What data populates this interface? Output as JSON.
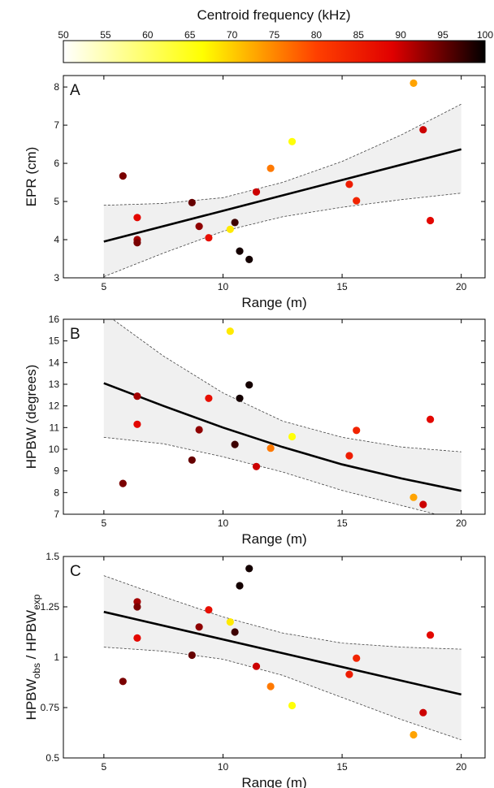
{
  "colorbar": {
    "title": "Centroid frequency (kHz)",
    "ticks": [
      "50",
      "55",
      "60",
      "65",
      "70",
      "75",
      "80",
      "85",
      "90",
      "95",
      "100"
    ],
    "range": [
      50,
      100
    ]
  },
  "chart_data": [
    {
      "type": "scatter",
      "panel": "A",
      "xlabel": "Range (m)",
      "ylabel": "EPR (cm)",
      "xlim": [
        3.3,
        21.0
      ],
      "ylim": [
        3,
        8.3
      ],
      "xticks": [
        5,
        10,
        15,
        20
      ],
      "yticks": [
        3,
        4,
        5,
        6,
        7,
        8
      ],
      "points": [
        {
          "x": 5.8,
          "y": 5.67,
          "f": 94
        },
        {
          "x": 6.4,
          "y": 4.58,
          "f": 88
        },
        {
          "x": 6.4,
          "y": 4.0,
          "f": 92
        },
        {
          "x": 6.4,
          "y": 3.92,
          "f": 94
        },
        {
          "x": 8.7,
          "y": 4.97,
          "f": 95
        },
        {
          "x": 9.0,
          "y": 4.35,
          "f": 93
        },
        {
          "x": 9.4,
          "y": 4.05,
          "f": 87
        },
        {
          "x": 10.3,
          "y": 4.27,
          "f": 68
        },
        {
          "x": 10.5,
          "y": 4.45,
          "f": 97
        },
        {
          "x": 10.7,
          "y": 3.7,
          "f": 99
        },
        {
          "x": 11.1,
          "y": 3.48,
          "f": 99
        },
        {
          "x": 11.4,
          "y": 5.25,
          "f": 90
        },
        {
          "x": 12.0,
          "y": 5.87,
          "f": 76
        },
        {
          "x": 12.9,
          "y": 6.57,
          "f": 66
        },
        {
          "x": 15.3,
          "y": 5.45,
          "f": 85
        },
        {
          "x": 15.6,
          "y": 5.02,
          "f": 84
        },
        {
          "x": 18.0,
          "y": 8.1,
          "f": 73
        },
        {
          "x": 18.4,
          "y": 6.88,
          "f": 90
        },
        {
          "x": 18.7,
          "y": 4.5,
          "f": 88
        }
      ],
      "fit": {
        "x": [
          5,
          20
        ],
        "y": [
          3.95,
          6.37
        ]
      },
      "ci_upper": {
        "x": [
          5,
          7.5,
          10,
          12.5,
          15,
          17.5,
          20
        ],
        "y": [
          4.9,
          4.95,
          5.1,
          5.5,
          6.05,
          6.75,
          7.55
        ]
      },
      "ci_lower": {
        "x": [
          5,
          7.5,
          10,
          12.5,
          15,
          17.5,
          20
        ],
        "y": [
          3.03,
          3.65,
          4.22,
          4.6,
          4.85,
          5.05,
          5.22
        ]
      }
    },
    {
      "type": "scatter",
      "panel": "B",
      "xlabel": "Range (m)",
      "ylabel": "HPBW (degrees)",
      "xlim": [
        3.3,
        21.0
      ],
      "ylim": [
        7,
        16
      ],
      "xticks": [
        5,
        10,
        15,
        20
      ],
      "yticks": [
        7,
        8,
        9,
        10,
        11,
        12,
        13,
        14,
        15,
        16
      ],
      "points": [
        {
          "x": 5.8,
          "y": 8.42,
          "f": 94
        },
        {
          "x": 6.4,
          "y": 12.45,
          "f": 92
        },
        {
          "x": 6.4,
          "y": 11.15,
          "f": 88
        },
        {
          "x": 8.7,
          "y": 9.5,
          "f": 95
        },
        {
          "x": 9.0,
          "y": 10.9,
          "f": 93
        },
        {
          "x": 9.4,
          "y": 12.35,
          "f": 87
        },
        {
          "x": 10.3,
          "y": 15.45,
          "f": 68
        },
        {
          "x": 10.5,
          "y": 10.22,
          "f": 97
        },
        {
          "x": 10.7,
          "y": 12.35,
          "f": 99
        },
        {
          "x": 11.1,
          "y": 12.97,
          "f": 99
        },
        {
          "x": 11.4,
          "y": 9.2,
          "f": 90
        },
        {
          "x": 12.0,
          "y": 10.05,
          "f": 76
        },
        {
          "x": 12.9,
          "y": 10.58,
          "f": 66
        },
        {
          "x": 15.3,
          "y": 9.7,
          "f": 85
        },
        {
          "x": 15.6,
          "y": 10.87,
          "f": 84
        },
        {
          "x": 18.0,
          "y": 7.78,
          "f": 73
        },
        {
          "x": 18.4,
          "y": 7.45,
          "f": 90
        },
        {
          "x": 18.7,
          "y": 11.38,
          "f": 88
        }
      ],
      "fit": {
        "x": [
          5,
          7.5,
          10,
          12.5,
          15,
          17.5,
          20
        ],
        "y": [
          13.05,
          12.0,
          11.0,
          10.1,
          9.3,
          8.65,
          8.08
        ]
      },
      "ci_upper": {
        "x": [
          5,
          7.5,
          10,
          12.5,
          15,
          17.5,
          20
        ],
        "y": [
          16.3,
          14.3,
          12.6,
          11.3,
          10.55,
          10.1,
          9.88
        ]
      },
      "ci_lower": {
        "x": [
          5,
          7.5,
          10,
          12.5,
          15,
          17.5,
          20
        ],
        "y": [
          10.55,
          10.25,
          9.65,
          8.95,
          8.1,
          7.4,
          6.7
        ]
      }
    },
    {
      "type": "scatter",
      "panel": "C",
      "xlabel": "Range (m)",
      "ylabel_main": "HPBW",
      "ylabel_sub1": "obs",
      "ylabel_mid": " / HPBW",
      "ylabel_sub2": "exp",
      "xlim": [
        3.3,
        21.0
      ],
      "ylim": [
        0.5,
        1.5
      ],
      "xticks": [
        5,
        10,
        15,
        20
      ],
      "yticks": [
        0.5,
        0.75,
        1,
        1.25,
        1.5
      ],
      "ytick_labels": [
        "0.5",
        "0.75",
        "1",
        "1.25",
        "1.5"
      ],
      "points": [
        {
          "x": 5.8,
          "y": 0.88,
          "f": 94
        },
        {
          "x": 6.4,
          "y": 1.275,
          "f": 92
        },
        {
          "x": 6.4,
          "y": 1.25,
          "f": 94
        },
        {
          "x": 6.4,
          "y": 1.095,
          "f": 88
        },
        {
          "x": 8.7,
          "y": 1.01,
          "f": 95
        },
        {
          "x": 9.0,
          "y": 1.15,
          "f": 93
        },
        {
          "x": 9.4,
          "y": 1.235,
          "f": 87
        },
        {
          "x": 10.3,
          "y": 1.175,
          "f": 68
        },
        {
          "x": 10.5,
          "y": 1.125,
          "f": 97
        },
        {
          "x": 10.7,
          "y": 1.355,
          "f": 99
        },
        {
          "x": 11.1,
          "y": 1.44,
          "f": 99
        },
        {
          "x": 11.4,
          "y": 0.955,
          "f": 90
        },
        {
          "x": 12.0,
          "y": 0.855,
          "f": 76
        },
        {
          "x": 12.9,
          "y": 0.76,
          "f": 66
        },
        {
          "x": 15.3,
          "y": 0.915,
          "f": 85
        },
        {
          "x": 15.6,
          "y": 0.995,
          "f": 84
        },
        {
          "x": 18.0,
          "y": 0.615,
          "f": 73
        },
        {
          "x": 18.4,
          "y": 0.725,
          "f": 90
        },
        {
          "x": 18.7,
          "y": 1.11,
          "f": 88
        }
      ],
      "fit": {
        "x": [
          5,
          20
        ],
        "y": [
          1.225,
          0.815
        ]
      },
      "ci_upper": {
        "x": [
          5,
          7.5,
          10,
          12.5,
          15,
          17.5,
          20
        ],
        "y": [
          1.405,
          1.3,
          1.2,
          1.12,
          1.07,
          1.05,
          1.04
        ]
      },
      "ci_lower": {
        "x": [
          5,
          7.5,
          10,
          12.5,
          15,
          17.5,
          20
        ],
        "y": [
          1.05,
          1.03,
          0.99,
          0.91,
          0.8,
          0.69,
          0.59
        ]
      }
    }
  ]
}
